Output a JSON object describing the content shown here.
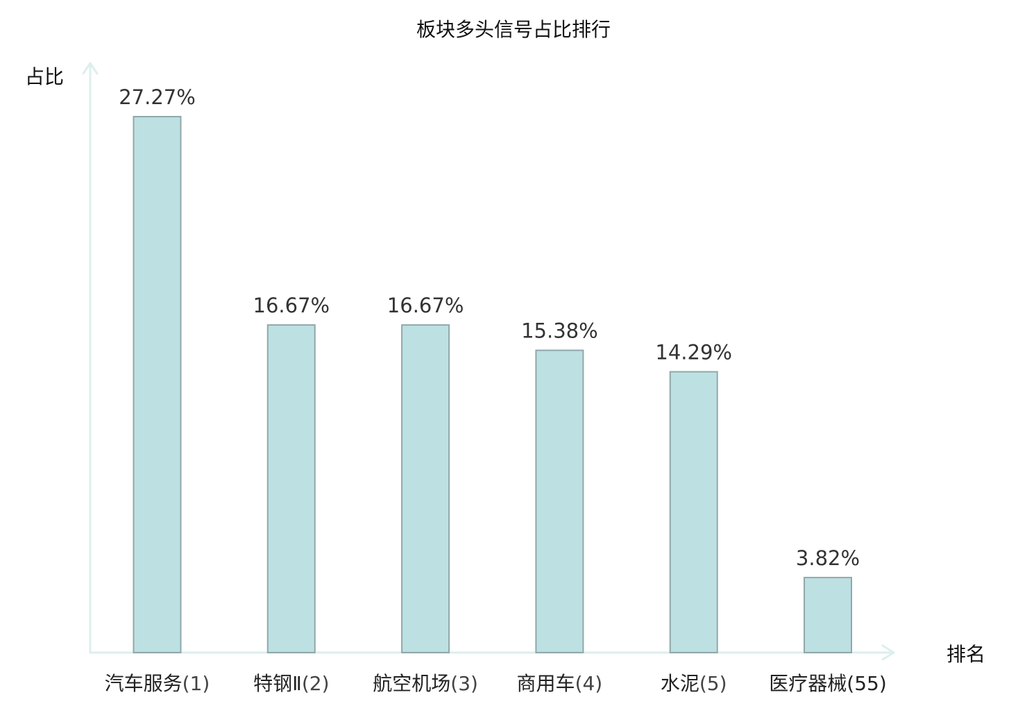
{
  "chart_data": {
    "type": "bar",
    "title": "板块多头信号占比排行",
    "xlabel": "排名",
    "ylabel": "占比",
    "categories": [
      "汽车服务",
      "特钢Ⅱ",
      "航空机场",
      "商用车",
      "水泥",
      "医疗器械"
    ],
    "ranks": [
      "(1)",
      "(2)",
      "(3)",
      "(4)",
      "(5)",
      "(55)"
    ],
    "values": [
      27.27,
      16.67,
      16.67,
      15.38,
      14.29,
      3.82
    ],
    "value_labels": [
      "27.27%",
      "16.67%",
      "16.67%",
      "15.38%",
      "14.29%",
      "3.82%"
    ],
    "highlight_index": 5,
    "ylim": [
      0,
      27.27
    ],
    "grid": false,
    "legend": "none",
    "colors": {
      "bar_fill": "#bde0e2",
      "bar_stroke": "#8fa8aa",
      "axis": "#dcefed",
      "highlight": "#e02020",
      "value_text": "#333333",
      "category_text": "#222222"
    }
  }
}
